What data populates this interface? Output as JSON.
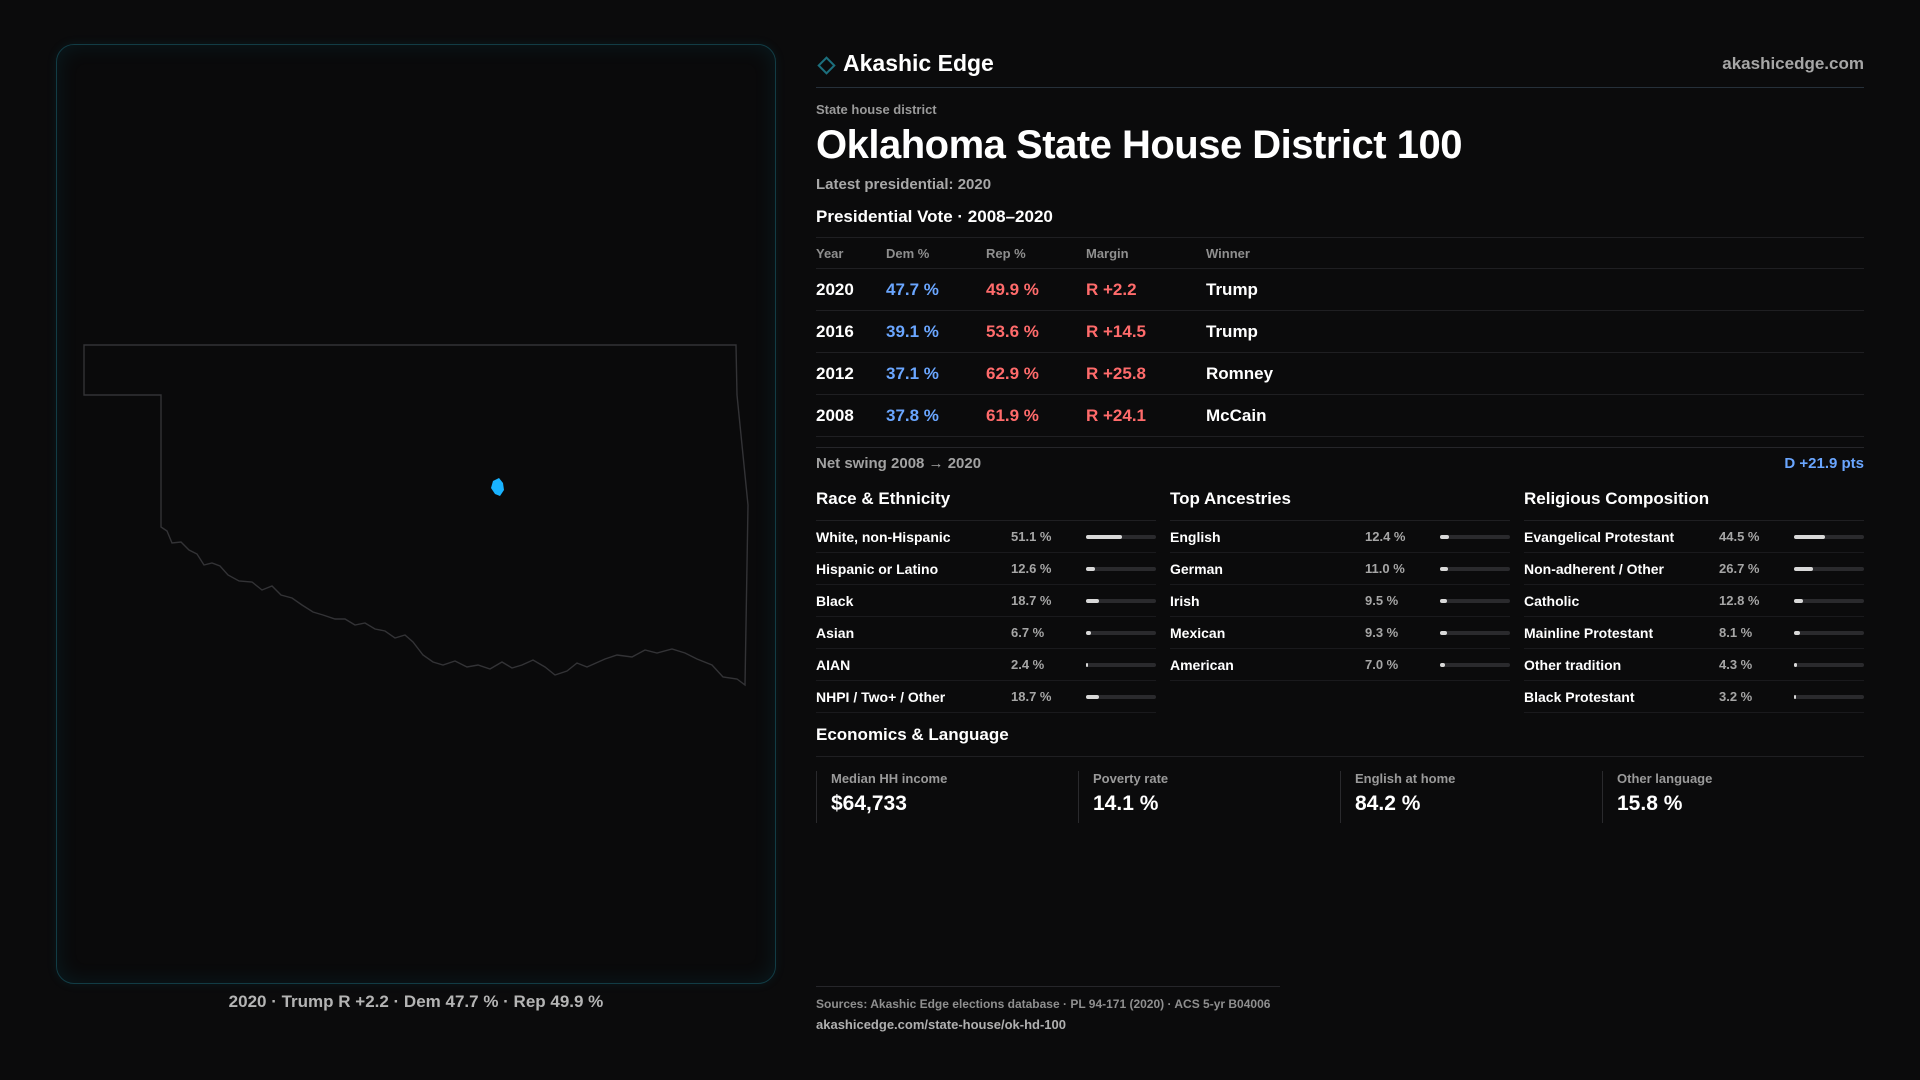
{
  "brand": {
    "name": "Akashic Edge",
    "url": "akashicedge.com",
    "icon": "diamond-icon",
    "accent": "#1c6f7d"
  },
  "header": {
    "eyebrow": "State house district",
    "title": "Oklahoma State House District 100",
    "subtitle": "Latest presidential: 2020"
  },
  "map": {
    "caption": "2020 · Trump R +2.2 · Dem 47.7 % · Rep 49.9 %",
    "outline_color": "#333336",
    "district_color": "#19b3ff"
  },
  "vote": {
    "title": "Presidential Vote · 2008–2020",
    "headers": {
      "year": "Year",
      "dem": "Dem %",
      "rep": "Rep %",
      "margin": "Margin",
      "winner": "Winner"
    },
    "rows": [
      {
        "year": "2020",
        "dem": "47.7 %",
        "rep": "49.9 %",
        "margin": "R +2.2",
        "winner": "Trump"
      },
      {
        "year": "2016",
        "dem": "39.1 %",
        "rep": "53.6 %",
        "margin": "R +14.5",
        "winner": "Trump"
      },
      {
        "year": "2012",
        "dem": "37.1 %",
        "rep": "62.9 %",
        "margin": "R +25.8",
        "winner": "Romney"
      },
      {
        "year": "2008",
        "dem": "37.8 %",
        "rep": "61.9 %",
        "margin": "R +24.1",
        "winner": "McCain"
      }
    ],
    "swing_label": "Net swing 2008 → 2020",
    "swing_value": "D +21.9 pts"
  },
  "race": {
    "title": "Race & Ethnicity",
    "rows": [
      {
        "label": "White, non-Hispanic",
        "value": "51.1 %",
        "pct": 51.1
      },
      {
        "label": "Hispanic or Latino",
        "value": "12.6 %",
        "pct": 12.6
      },
      {
        "label": "Black",
        "value": "18.7 %",
        "pct": 18.7
      },
      {
        "label": "Asian",
        "value": "6.7 %",
        "pct": 6.7
      },
      {
        "label": "AIAN",
        "value": "2.4 %",
        "pct": 2.4
      },
      {
        "label": "NHPI / Two+ / Other",
        "value": "18.7 %",
        "pct": 18.7
      }
    ]
  },
  "ancestry": {
    "title": "Top Ancestries",
    "rows": [
      {
        "label": "English",
        "value": "12.4 %",
        "pct": 12.4
      },
      {
        "label": "German",
        "value": "11.0 %",
        "pct": 11.0
      },
      {
        "label": "Irish",
        "value": "9.5 %",
        "pct": 9.5
      },
      {
        "label": "Mexican",
        "value": "9.3 %",
        "pct": 9.3
      },
      {
        "label": "American",
        "value": "7.0 %",
        "pct": 7.0
      }
    ]
  },
  "religion": {
    "title": "Religious Composition",
    "rows": [
      {
        "label": "Evangelical Protestant",
        "value": "44.5 %",
        "pct": 44.5
      },
      {
        "label": "Non-adherent / Other",
        "value": "26.7 %",
        "pct": 26.7
      },
      {
        "label": "Catholic",
        "value": "12.8 %",
        "pct": 12.8
      },
      {
        "label": "Mainline Protestant",
        "value": "8.1 %",
        "pct": 8.1
      },
      {
        "label": "Other tradition",
        "value": "4.3 %",
        "pct": 4.3
      },
      {
        "label": "Black Protestant",
        "value": "3.2 %",
        "pct": 3.2
      }
    ]
  },
  "economics": {
    "title": "Economics & Language",
    "cards": [
      {
        "label": "Median HH income",
        "value": "$64,733"
      },
      {
        "label": "Poverty rate",
        "value": "14.1 %"
      },
      {
        "label": "English at home",
        "value": "84.2 %"
      },
      {
        "label": "Other language",
        "value": "15.8 %"
      }
    ]
  },
  "footer": {
    "sources": "Sources: Akashic Edge elections database · PL 94-171 (2020) · ACS 5-yr B04006",
    "url": "akashicedge.com/state-house/ok-hd-100"
  }
}
